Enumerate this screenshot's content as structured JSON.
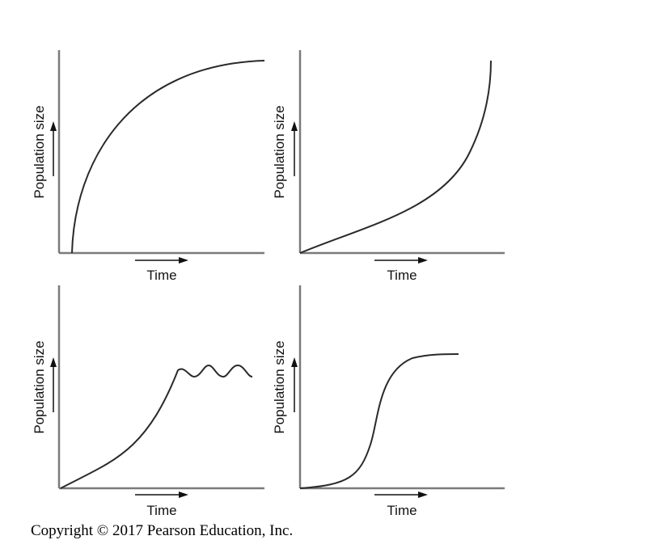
{
  "copyright": "Copyright © 2017 Pearson Education, Inc.",
  "chart_data": [
    {
      "type": "line",
      "position": "top-left",
      "ylabel": "Population size",
      "xlabel": "Time",
      "shape": "logarithmic-like",
      "x": [
        0.0,
        0.05,
        0.1,
        0.2,
        0.3,
        0.45,
        0.6,
        0.75,
        0.9,
        1.0
      ],
      "y": [
        0.0,
        0.3,
        0.45,
        0.6,
        0.71,
        0.82,
        0.89,
        0.94,
        0.98,
        1.0
      ]
    },
    {
      "type": "line",
      "position": "top-right",
      "ylabel": "Population size",
      "xlabel": "Time",
      "shape": "exponential (J-shaped)",
      "x": [
        0.0,
        0.2,
        0.4,
        0.55,
        0.7,
        0.8,
        0.88,
        0.93,
        0.96,
        0.98,
        1.0
      ],
      "y": [
        0.0,
        0.09,
        0.19,
        0.27,
        0.36,
        0.46,
        0.56,
        0.66,
        0.76,
        0.87,
        1.0
      ]
    },
    {
      "type": "line",
      "position": "bottom-left",
      "ylabel": "Population size",
      "xlabel": "Time",
      "shape": "growth then oscillation",
      "x": [
        0.0,
        0.15,
        0.3,
        0.42,
        0.52,
        0.6,
        0.66,
        0.72,
        0.78,
        0.84,
        0.9,
        0.96
      ],
      "y": [
        0.0,
        0.1,
        0.23,
        0.36,
        0.5,
        0.65,
        0.65,
        0.61,
        0.65,
        0.61,
        0.65,
        0.61
      ]
    },
    {
      "type": "line",
      "position": "bottom-right",
      "ylabel": "Population size",
      "xlabel": "Time",
      "shape": "logistic (S-shaped)",
      "x": [
        0.0,
        0.1,
        0.2,
        0.28,
        0.34,
        0.38,
        0.42,
        0.47,
        0.55,
        0.65,
        0.78
      ],
      "y": [
        0.0,
        0.04,
        0.1,
        0.2,
        0.36,
        0.52,
        0.6,
        0.63,
        0.65,
        0.66,
        0.66
      ]
    }
  ]
}
